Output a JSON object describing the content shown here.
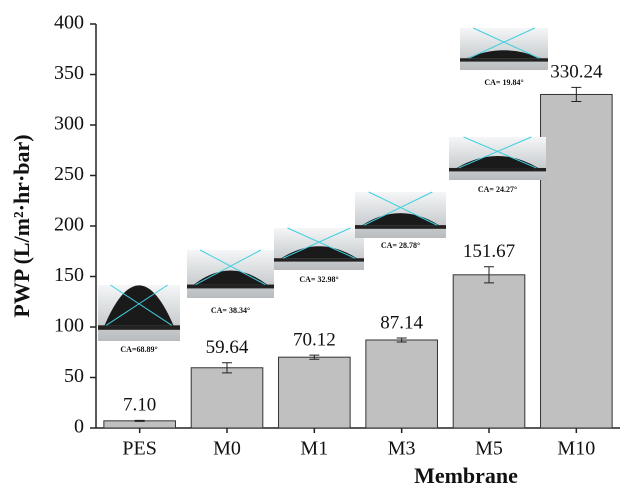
{
  "chart_data": {
    "type": "bar",
    "x_label": "Membrane",
    "y_label": "PWP (L/m²·hr·bar)",
    "categories": [
      "PES",
      "M0",
      "M1",
      "M3",
      "M5",
      "M10"
    ],
    "values": [
      7.1,
      59.64,
      70.12,
      87.14,
      151.67,
      330.24
    ],
    "value_labels": [
      "7.10",
      "59.64",
      "70.12",
      "87.14",
      "151.67",
      "330.24"
    ],
    "errors": [
      0.5,
      5,
      2,
      2,
      8,
      7
    ],
    "color": "#c0c0c0",
    "ylim": [
      0,
      400
    ],
    "yticks": [
      0,
      50,
      100,
      150,
      200,
      250,
      300,
      350,
      400
    ],
    "annotations": [
      "CA=68.89°",
      "CA= 38.34°",
      "CA= 32.98°",
      "CA= 28.78°",
      "CA= 24.27°",
      "CA= 19.84°"
    ]
  }
}
